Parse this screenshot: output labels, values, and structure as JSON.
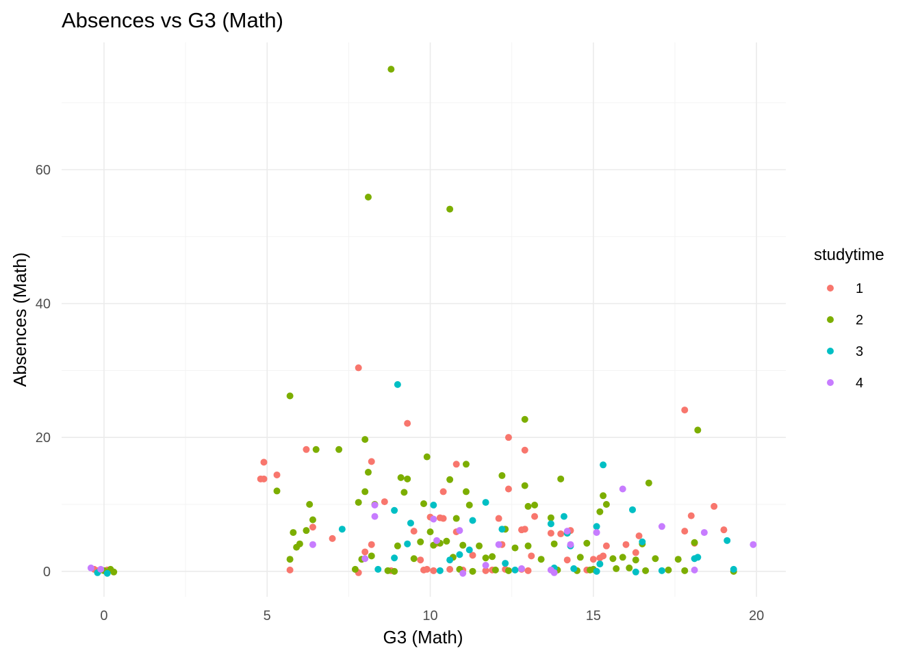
{
  "chart_data": {
    "type": "scatter",
    "title": "Absences vs G3 (Math)",
    "xlabel": "G3 (Math)",
    "ylabel": "Absences (Math)",
    "xlim": [
      -1.3,
      20.9
    ],
    "ylim": [
      -3.8,
      79
    ],
    "x_ticks": [
      0,
      5,
      10,
      15,
      20
    ],
    "y_ticks": [
      0,
      20,
      40,
      60
    ],
    "grid": true,
    "legend_position": "right",
    "legend_title": "studytime",
    "series": [
      {
        "name": "1",
        "color": "#F8766D",
        "points": [
          [
            -0.3,
            0.3
          ],
          [
            -0.2,
            0.1
          ],
          [
            0.1,
            0.2
          ],
          [
            4.8,
            13.8
          ],
          [
            4.9,
            16.3
          ],
          [
            4.9,
            13.8
          ],
          [
            5.3,
            14.4
          ],
          [
            5.7,
            0.2
          ],
          [
            6.2,
            18.2
          ],
          [
            6.4,
            6.6
          ],
          [
            7.0,
            4.9
          ],
          [
            7.8,
            30.4
          ],
          [
            7.8,
            -0.2
          ],
          [
            8.0,
            2.9
          ],
          [
            8.2,
            16.4
          ],
          [
            8.2,
            4.0
          ],
          [
            8.6,
            10.4
          ],
          [
            8.8,
            0.1
          ],
          [
            9.3,
            22.1
          ],
          [
            9.5,
            6.0
          ],
          [
            9.7,
            1.7
          ],
          [
            9.8,
            0.2
          ],
          [
            9.9,
            0.3
          ],
          [
            10.0,
            8.1
          ],
          [
            10.1,
            0.1
          ],
          [
            10.2,
            4.2
          ],
          [
            10.3,
            8.0
          ],
          [
            10.4,
            7.9
          ],
          [
            10.4,
            11.9
          ],
          [
            10.6,
            0.3
          ],
          [
            10.8,
            5.9
          ],
          [
            10.8,
            16.0
          ],
          [
            11.0,
            0.2
          ],
          [
            11.3,
            2.4
          ],
          [
            11.7,
            0.1
          ],
          [
            11.9,
            0.2
          ],
          [
            12.1,
            7.9
          ],
          [
            12.2,
            4.0
          ],
          [
            12.3,
            0.3
          ],
          [
            12.4,
            20.0
          ],
          [
            12.4,
            12.3
          ],
          [
            12.8,
            6.2
          ],
          [
            12.8,
            0.3
          ],
          [
            12.9,
            6.3
          ],
          [
            12.9,
            18.1
          ],
          [
            13.0,
            0.1
          ],
          [
            13.1,
            2.3
          ],
          [
            13.2,
            8.2
          ],
          [
            13.7,
            5.7
          ],
          [
            14.0,
            5.6
          ],
          [
            14.2,
            1.7
          ],
          [
            14.3,
            6.1
          ],
          [
            14.8,
            0.2
          ],
          [
            15.0,
            1.8
          ],
          [
            15.2,
            2.0
          ],
          [
            15.3,
            2.3
          ],
          [
            15.4,
            3.8
          ],
          [
            16.0,
            4.0
          ],
          [
            16.3,
            2.8
          ],
          [
            16.4,
            5.3
          ],
          [
            17.8,
            24.1
          ],
          [
            17.8,
            6.0
          ],
          [
            18.0,
            8.3
          ],
          [
            18.1,
            4.2
          ],
          [
            18.7,
            9.7
          ],
          [
            19.0,
            6.2
          ]
        ]
      },
      {
        "name": "2",
        "color": "#7CAE00",
        "points": [
          [
            -0.1,
            0.2
          ],
          [
            0.0,
            0.1
          ],
          [
            0.2,
            0.3
          ],
          [
            0.3,
            -0.1
          ],
          [
            5.3,
            12.0
          ],
          [
            5.7,
            26.2
          ],
          [
            5.7,
            1.8
          ],
          [
            5.8,
            5.8
          ],
          [
            5.9,
            3.6
          ],
          [
            6.0,
            4.1
          ],
          [
            6.2,
            6.1
          ],
          [
            6.3,
            10.0
          ],
          [
            6.4,
            7.7
          ],
          [
            6.5,
            18.2
          ],
          [
            7.2,
            18.2
          ],
          [
            7.7,
            0.3
          ],
          [
            7.8,
            10.3
          ],
          [
            7.9,
            1.8
          ],
          [
            8.0,
            11.9
          ],
          [
            8.0,
            19.7
          ],
          [
            8.1,
            14.8
          ],
          [
            8.1,
            55.9
          ],
          [
            8.2,
            2.3
          ],
          [
            8.3,
            10.0
          ],
          [
            8.7,
            0.1
          ],
          [
            8.8,
            75.0
          ],
          [
            8.9,
            0.0
          ],
          [
            9.0,
            3.8
          ],
          [
            9.1,
            14.0
          ],
          [
            9.2,
            11.8
          ],
          [
            9.3,
            13.8
          ],
          [
            9.5,
            1.9
          ],
          [
            9.7,
            4.4
          ],
          [
            9.8,
            10.1
          ],
          [
            9.9,
            17.1
          ],
          [
            10.0,
            5.9
          ],
          [
            10.1,
            3.9
          ],
          [
            10.3,
            4.2
          ],
          [
            10.5,
            4.5
          ],
          [
            10.6,
            54.1
          ],
          [
            10.6,
            13.7
          ],
          [
            10.7,
            2.1
          ],
          [
            10.8,
            7.9
          ],
          [
            10.9,
            0.3
          ],
          [
            11.0,
            3.9
          ],
          [
            11.1,
            16.0
          ],
          [
            11.1,
            11.9
          ],
          [
            11.2,
            9.9
          ],
          [
            11.3,
            0.0
          ],
          [
            11.5,
            3.8
          ],
          [
            11.7,
            2.0
          ],
          [
            11.9,
            2.2
          ],
          [
            12.0,
            0.2
          ],
          [
            12.2,
            14.3
          ],
          [
            12.3,
            6.3
          ],
          [
            12.4,
            0.1
          ],
          [
            12.6,
            3.5
          ],
          [
            12.9,
            22.7
          ],
          [
            12.9,
            12.8
          ],
          [
            13.0,
            9.7
          ],
          [
            13.0,
            3.8
          ],
          [
            13.2,
            9.9
          ],
          [
            13.4,
            1.8
          ],
          [
            13.7,
            8.0
          ],
          [
            13.8,
            4.1
          ],
          [
            13.9,
            0.2
          ],
          [
            14.0,
            13.8
          ],
          [
            14.2,
            5.7
          ],
          [
            14.5,
            0.1
          ],
          [
            14.6,
            2.1
          ],
          [
            14.8,
            4.2
          ],
          [
            14.9,
            0.2
          ],
          [
            15.0,
            0.3
          ],
          [
            15.2,
            8.9
          ],
          [
            15.3,
            11.3
          ],
          [
            15.4,
            10.0
          ],
          [
            15.6,
            1.9
          ],
          [
            15.7,
            0.4
          ],
          [
            15.9,
            2.1
          ],
          [
            16.1,
            0.5
          ],
          [
            16.3,
            1.7
          ],
          [
            16.5,
            4.1
          ],
          [
            16.6,
            0.1
          ],
          [
            16.7,
            13.2
          ],
          [
            16.9,
            1.9
          ],
          [
            17.3,
            0.2
          ],
          [
            17.6,
            1.8
          ],
          [
            17.8,
            0.1
          ],
          [
            18.1,
            4.3
          ],
          [
            18.2,
            21.1
          ],
          [
            19.3,
            0.0
          ]
        ]
      },
      {
        "name": "3",
        "color": "#00BFC4",
        "points": [
          [
            -0.2,
            -0.2
          ],
          [
            0.1,
            -0.3
          ],
          [
            7.3,
            6.3
          ],
          [
            8.4,
            0.3
          ],
          [
            8.9,
            9.1
          ],
          [
            8.9,
            2.0
          ],
          [
            9.0,
            27.9
          ],
          [
            9.3,
            4.1
          ],
          [
            9.4,
            7.2
          ],
          [
            10.1,
            9.9
          ],
          [
            10.3,
            0.1
          ],
          [
            10.6,
            1.7
          ],
          [
            10.9,
            2.5
          ],
          [
            11.2,
            3.2
          ],
          [
            11.3,
            7.6
          ],
          [
            11.7,
            10.3
          ],
          [
            12.2,
            6.3
          ],
          [
            12.3,
            1.2
          ],
          [
            12.6,
            0.2
          ],
          [
            13.7,
            7.1
          ],
          [
            13.8,
            0.5
          ],
          [
            14.1,
            8.2
          ],
          [
            14.2,
            5.7
          ],
          [
            14.3,
            3.8
          ],
          [
            14.4,
            0.4
          ],
          [
            15.1,
            6.7
          ],
          [
            15.2,
            1.1
          ],
          [
            15.3,
            15.9
          ],
          [
            15.1,
            0.0
          ],
          [
            16.2,
            9.2
          ],
          [
            16.3,
            -0.1
          ],
          [
            16.5,
            4.4
          ],
          [
            17.1,
            0.1
          ],
          [
            18.1,
            1.9
          ],
          [
            18.2,
            2.1
          ],
          [
            19.1,
            4.6
          ],
          [
            19.3,
            0.3
          ]
        ]
      },
      {
        "name": "4",
        "color": "#C77CFF",
        "points": [
          [
            -0.4,
            0.5
          ],
          [
            -0.1,
            0.3
          ],
          [
            6.4,
            4.0
          ],
          [
            8.0,
            1.9
          ],
          [
            8.3,
            9.9
          ],
          [
            8.3,
            8.2
          ],
          [
            10.1,
            7.8
          ],
          [
            10.2,
            4.6
          ],
          [
            10.9,
            6.1
          ],
          [
            11.0,
            -0.3
          ],
          [
            11.7,
            0.9
          ],
          [
            12.1,
            4.0
          ],
          [
            12.8,
            0.4
          ],
          [
            13.7,
            0.2
          ],
          [
            13.8,
            -0.2
          ],
          [
            14.3,
            4.0
          ],
          [
            14.2,
            6.0
          ],
          [
            15.1,
            5.8
          ],
          [
            15.9,
            12.3
          ],
          [
            17.1,
            6.7
          ],
          [
            18.1,
            0.2
          ],
          [
            18.4,
            5.8
          ],
          [
            19.9,
            4.0
          ]
        ]
      }
    ]
  }
}
